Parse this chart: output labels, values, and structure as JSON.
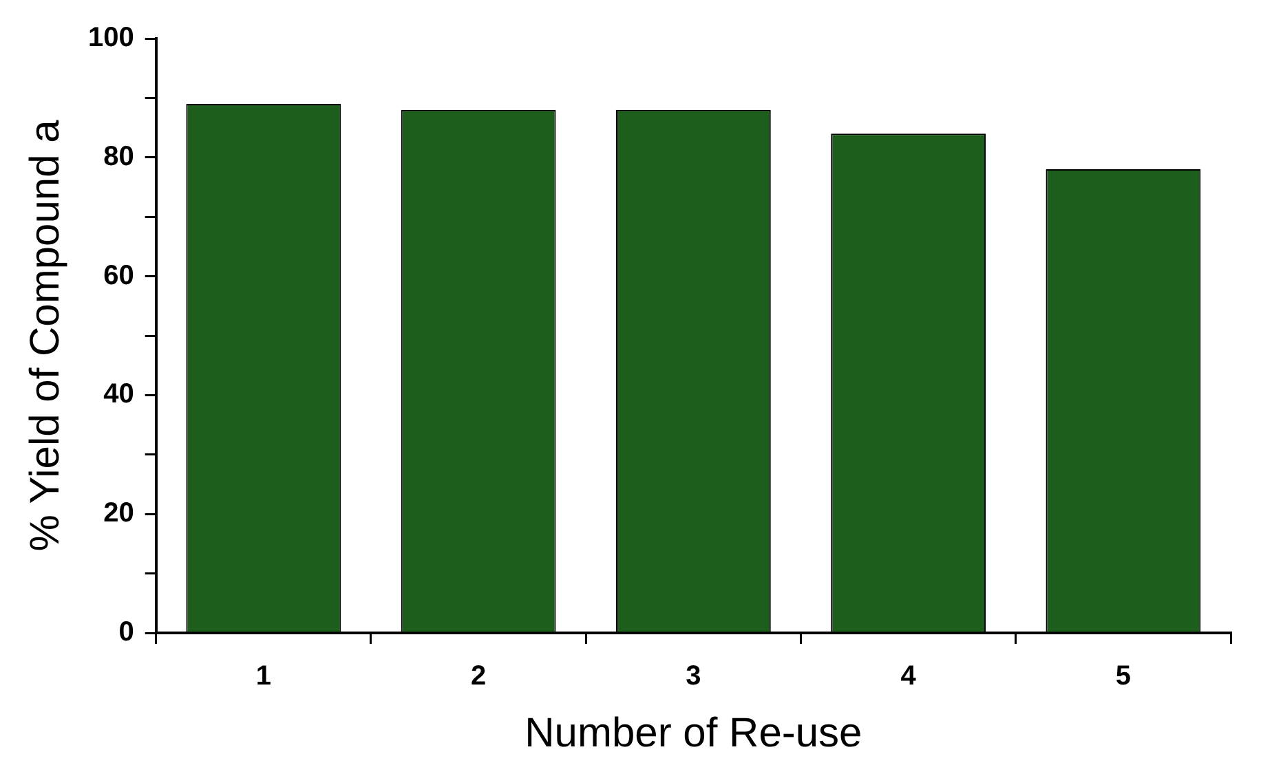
{
  "chart_data": {
    "type": "bar",
    "xlabel": "Number of Re-use",
    "ylabel": "% Yield of Compound a",
    "categories": [
      "1",
      "2",
      "3",
      "4",
      "5"
    ],
    "values": [
      89,
      88,
      88,
      84,
      78
    ],
    "color": "#1d5e1d",
    "ylim": [
      0,
      100
    ],
    "yticks": [
      0,
      {
        "value": 10,
        "label": null
      },
      20,
      {
        "value": 30,
        "label": null
      },
      40,
      {
        "value": 50,
        "label": null
      },
      60,
      {
        "value": 70,
        "label": null
      },
      80,
      {
        "value": 90,
        "label": null
      },
      100
    ],
    "grid": false,
    "legend": false
  }
}
